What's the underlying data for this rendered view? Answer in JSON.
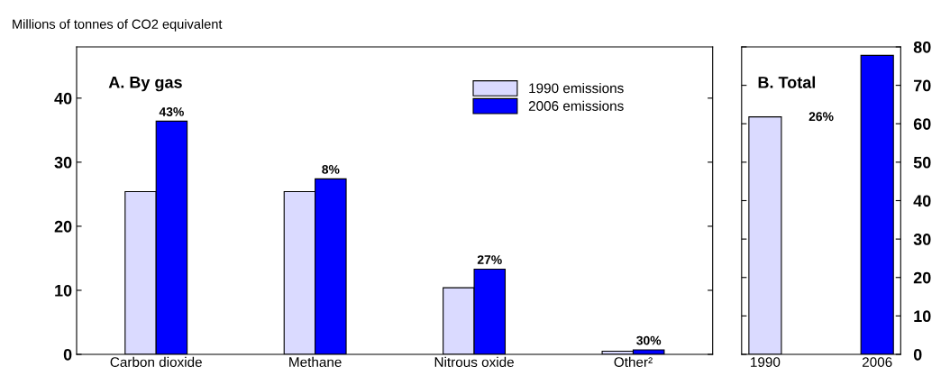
{
  "chart_data": [
    {
      "type": "bar",
      "title": "A. By gas",
      "ylabel": "Millions of tonnes of CO2 equivalent",
      "categories": [
        "Carbon dioxide",
        "Methane",
        "Nitrous oxide",
        "Other²"
      ],
      "series": [
        {
          "name": "1990 emissions",
          "color": "#dadaff",
          "values": [
            25.4,
            25.4,
            10.4,
            0.5
          ]
        },
        {
          "name": "2006 emissions",
          "color": "#0000ff",
          "values": [
            36.4,
            27.4,
            13.3,
            0.7
          ]
        }
      ],
      "ylim": [
        0,
        48
      ],
      "yticks": [
        0,
        10,
        20,
        30,
        40
      ],
      "legend": "top right",
      "grid": false,
      "annotations": [
        {
          "text": "43%",
          "x": "Carbon dioxide",
          "y": 36.4
        },
        {
          "text": "8%",
          "x": "Methane",
          "y": 27.4
        },
        {
          "text": "27%",
          "x": "Nitrous oxide",
          "y": 13.3
        },
        {
          "text": "30%",
          "x": "Other²",
          "y": 0.7
        }
      ]
    },
    {
      "type": "bar",
      "title": "B. Total",
      "categories": [
        "1990",
        "2006"
      ],
      "colors": [
        "#dadaff",
        "#0000ff"
      ],
      "values": [
        61.8,
        77.8
      ],
      "ylim": [
        0,
        80
      ],
      "yticks": [
        0,
        10,
        20,
        30,
        40,
        50,
        60,
        70,
        80
      ],
      "grid": false,
      "annotations": [
        "26%"
      ]
    }
  ]
}
